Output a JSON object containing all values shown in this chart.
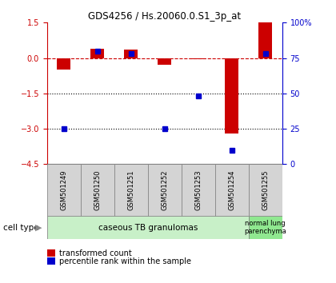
{
  "title": "GDS4256 / Hs.20060.0.S1_3p_at",
  "samples": [
    "GSM501249",
    "GSM501250",
    "GSM501251",
    "GSM501252",
    "GSM501253",
    "GSM501254",
    "GSM501255"
  ],
  "red_bars": [
    -0.5,
    0.4,
    0.35,
    -0.3,
    -0.05,
    -3.2,
    1.5
  ],
  "blue_pct": [
    25,
    80,
    78,
    25,
    48,
    10,
    78
  ],
  "ylim_left": [
    -4.5,
    1.5
  ],
  "ylim_right": [
    0,
    100
  ],
  "left_ticks": [
    1.5,
    0,
    -1.5,
    -3,
    -4.5
  ],
  "right_ticks": [
    100,
    75,
    50,
    25,
    0
  ],
  "bar_width": 0.4,
  "red_color": "#cc0000",
  "blue_color": "#0000cc",
  "dotted_lines": [
    -1.5,
    -3
  ],
  "cell_type_groups": [
    {
      "label": "caseous TB granulomas",
      "samples": [
        0,
        1,
        2,
        3,
        4,
        5
      ],
      "color": "#c8f0c8"
    },
    {
      "label": "normal lung\nparenchyma",
      "samples": [
        6
      ],
      "color": "#90e890"
    }
  ],
  "legend_red": "transformed count",
  "legend_blue": "percentile rank within the sample",
  "cell_type_label": "cell type"
}
